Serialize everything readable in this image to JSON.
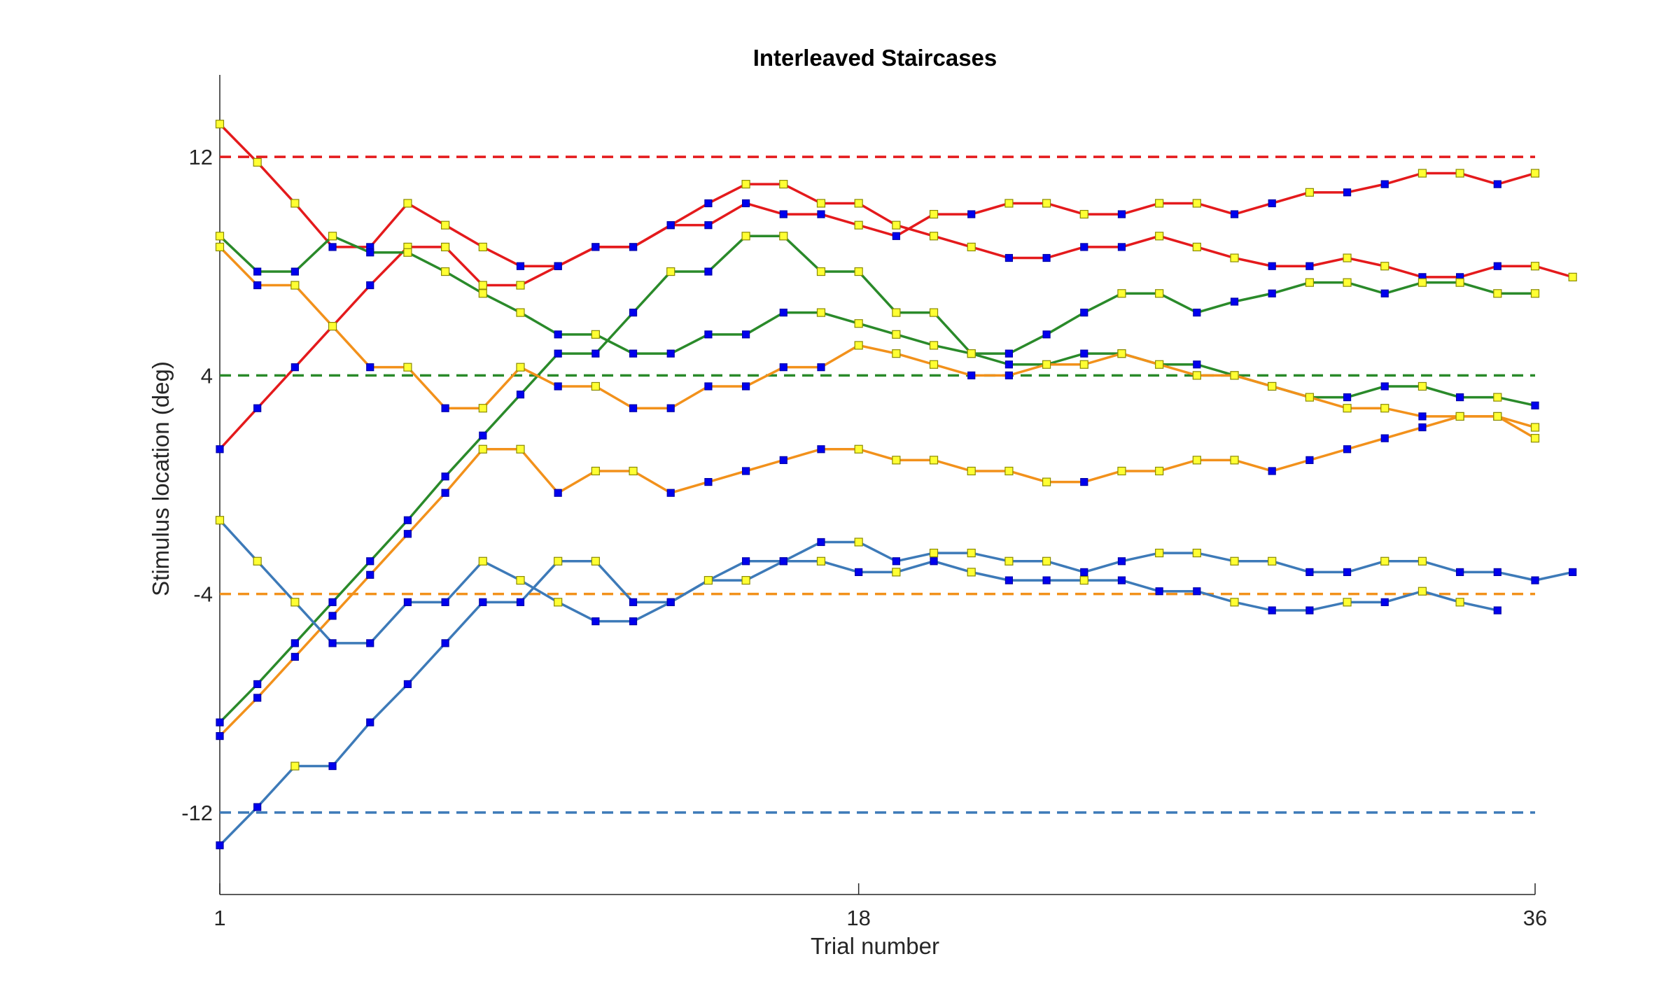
{
  "chart_data": {
    "type": "line",
    "title": "Interleaved Staircases",
    "xlabel": "Trial number",
    "ylabel": "Stimulus location (deg)",
    "xlim": [
      1,
      36
    ],
    "ylim": [
      -15,
      15
    ],
    "xticks": [
      1,
      18,
      36
    ],
    "yticks": [
      -12,
      -4,
      4,
      12
    ],
    "grid": false,
    "reference_lines": [
      {
        "name": "red-target",
        "y": 12,
        "color": "#e41a1c"
      },
      {
        "name": "green-target",
        "y": 4,
        "color": "#2a8a2a"
      },
      {
        "name": "orange-target",
        "y": -4,
        "color": "#f2911b"
      },
      {
        "name": "blue-target",
        "y": -12,
        "color": "#3d7ab8"
      }
    ],
    "series": [
      {
        "name": "red-1",
        "color": "#e41a1c",
        "values": [
          13.2,
          11.8,
          10.3,
          8.7,
          8.7,
          10.3,
          9.5,
          8.7,
          8.0,
          8.0,
          8.7,
          8.7,
          9.5,
          10.3,
          11.0,
          11.0,
          10.3,
          10.3,
          9.5,
          9.1,
          8.7,
          8.3,
          8.3,
          8.7,
          8.7,
          9.1,
          8.7,
          8.3,
          8.0,
          8.0,
          8.3,
          8.0,
          7.6,
          7.6,
          8.0,
          8.0,
          7.6
        ],
        "markers": [
          "y",
          "y",
          "y",
          "b",
          "b",
          "y",
          "y",
          "y",
          "b",
          "b",
          "b",
          "b",
          "b",
          "b",
          "y",
          "y",
          "y",
          "y",
          "y",
          "y",
          "y",
          "b",
          "b",
          "b",
          "b",
          "y",
          "y",
          "y",
          "b",
          "b",
          "y",
          "y",
          "b",
          "b",
          "b",
          "y",
          "y"
        ]
      },
      {
        "name": "red-2",
        "color": "#e41a1c",
        "values": [
          1.3,
          2.8,
          4.3,
          5.8,
          7.3,
          8.7,
          8.7,
          7.3,
          7.3,
          8.0,
          8.7,
          8.7,
          9.5,
          9.5,
          10.3,
          9.9,
          9.9,
          9.5,
          9.1,
          9.9,
          9.9,
          10.3,
          10.3,
          9.9,
          9.9,
          10.3,
          10.3,
          9.9,
          10.3,
          10.7,
          10.7,
          11.0,
          11.4,
          11.4,
          11.0,
          11.4
        ],
        "markers": [
          "b",
          "b",
          "b",
          "b",
          "b",
          "y",
          "y",
          "y",
          "y",
          "b",
          "b",
          "b",
          "b",
          "b",
          "b",
          "b",
          "b",
          "y",
          "b",
          "y",
          "b",
          "y",
          "y",
          "y",
          "b",
          "y",
          "y",
          "b",
          "b",
          "y",
          "b",
          "b",
          "y",
          "y",
          "b",
          "y"
        ]
      },
      {
        "name": "green-1",
        "color": "#2a8a2a",
        "values": [
          9.1,
          7.8,
          7.8,
          9.1,
          8.5,
          8.5,
          7.8,
          7.0,
          6.3,
          5.5,
          5.5,
          4.8,
          4.8,
          5.5,
          5.5,
          6.3,
          6.3,
          5.9,
          5.5,
          5.1,
          4.8,
          4.4,
          4.4,
          4.8,
          4.8,
          4.4,
          4.4,
          4.0,
          3.6,
          3.2,
          3.2,
          3.6,
          3.6,
          3.2,
          3.2,
          2.9
        ],
        "markers": [
          "y",
          "b",
          "b",
          "y",
          "b",
          "y",
          "y",
          "y",
          "y",
          "b",
          "y",
          "b",
          "b",
          "b",
          "b",
          "b",
          "y",
          "y",
          "y",
          "y",
          "y",
          "b",
          "b",
          "b",
          "y",
          "b",
          "b",
          "y",
          "y",
          "b",
          "b",
          "b",
          "y",
          "b",
          "y",
          "b"
        ]
      },
      {
        "name": "green-2",
        "color": "#2a8a2a",
        "values": [
          -8.7,
          -7.3,
          -5.8,
          -4.3,
          -2.8,
          -1.3,
          0.3,
          1.8,
          3.3,
          4.8,
          4.8,
          6.3,
          7.8,
          7.8,
          9.1,
          9.1,
          7.8,
          7.8,
          6.3,
          6.3,
          4.8,
          4.8,
          5.5,
          6.3,
          7.0,
          7.0,
          6.3,
          6.7,
          7.0,
          7.4,
          7.4,
          7.0,
          7.4,
          7.4,
          7.0,
          7.0
        ],
        "markers": [
          "b",
          "b",
          "b",
          "b",
          "b",
          "b",
          "b",
          "b",
          "b",
          "b",
          "b",
          "b",
          "y",
          "b",
          "y",
          "y",
          "y",
          "y",
          "y",
          "y",
          "y",
          "b",
          "b",
          "b",
          "y",
          "y",
          "b",
          "b",
          "b",
          "y",
          "y",
          "b",
          "y",
          "y",
          "y",
          "y"
        ]
      },
      {
        "name": "orange-1",
        "color": "#f2911b",
        "values": [
          8.7,
          7.3,
          7.3,
          5.8,
          4.3,
          4.3,
          2.8,
          2.8,
          4.3,
          3.6,
          3.6,
          2.8,
          2.8,
          3.6,
          3.6,
          4.3,
          4.3,
          5.1,
          4.8,
          4.4,
          4.0,
          4.0,
          4.4,
          4.4,
          4.8,
          4.4,
          4.0,
          4.0,
          3.6,
          3.2,
          2.8,
          2.8,
          2.5,
          2.5,
          2.5,
          2.1
        ],
        "markers": [
          "y",
          "b",
          "y",
          "y",
          "b",
          "y",
          "b",
          "y",
          "y",
          "b",
          "y",
          "b",
          "b",
          "b",
          "b",
          "b",
          "b",
          "y",
          "y",
          "y",
          "b",
          "b",
          "y",
          "y",
          "y",
          "y",
          "y",
          "y",
          "y",
          "y",
          "y",
          "y",
          "b",
          "y",
          "y",
          "y"
        ]
      },
      {
        "name": "orange-2",
        "color": "#f2911b",
        "values": [
          -9.2,
          -7.8,
          -6.3,
          -4.8,
          -3.3,
          -1.8,
          -0.3,
          1.3,
          1.3,
          -0.3,
          0.5,
          0.5,
          -0.3,
          0.1,
          0.5,
          0.9,
          1.3,
          1.3,
          0.9,
          0.9,
          0.5,
          0.5,
          0.1,
          0.1,
          0.5,
          0.5,
          0.9,
          0.9,
          0.5,
          0.9,
          1.3,
          1.7,
          2.1,
          2.5,
          2.5,
          1.7
        ],
        "markers": [
          "b",
          "b",
          "b",
          "b",
          "b",
          "b",
          "b",
          "y",
          "y",
          "b",
          "y",
          "y",
          "b",
          "b",
          "b",
          "b",
          "b",
          "y",
          "y",
          "y",
          "y",
          "y",
          "y",
          "b",
          "y",
          "y",
          "y",
          "y",
          "b",
          "b",
          "b",
          "b",
          "b",
          "y",
          "y",
          "y"
        ]
      },
      {
        "name": "blue-1",
        "color": "#3d7ab8",
        "values": [
          -1.3,
          -2.8,
          -4.3,
          -5.8,
          -5.8,
          -4.3,
          -4.3,
          -2.8,
          -3.5,
          -4.3,
          -5.0,
          -5.0,
          -4.3,
          -3.5,
          -2.8,
          -2.8,
          -2.1,
          -2.1,
          -2.8,
          -2.5,
          -2.5,
          -2.8,
          -2.8,
          -3.2,
          -2.8,
          -2.5,
          -2.5,
          -2.8,
          -2.8,
          -3.2,
          -3.2,
          -2.8,
          -2.8,
          -3.2,
          -3.2,
          -3.5,
          -3.2
        ],
        "markers": [
          "y",
          "y",
          "y",
          "b",
          "b",
          "b",
          "b",
          "y",
          "y",
          "y",
          "b",
          "b",
          "b",
          "b",
          "b",
          "b",
          "b",
          "y",
          "b",
          "y",
          "y",
          "y",
          "y",
          "b",
          "b",
          "y",
          "y",
          "y",
          "y",
          "b",
          "b",
          "y",
          "y",
          "b",
          "b",
          "b",
          "b"
        ]
      },
      {
        "name": "blue-2",
        "color": "#3d7ab8",
        "values": [
          -13.2,
          -11.8,
          -10.3,
          -10.3,
          -8.7,
          -7.3,
          -5.8,
          -4.3,
          -4.3,
          -2.8,
          -2.8,
          -4.3,
          -4.3,
          -3.5,
          -3.5,
          -2.8,
          -2.8,
          -3.2,
          -3.2,
          -2.8,
          -3.2,
          -3.5,
          -3.5,
          -3.5,
          -3.5,
          -3.9,
          -3.9,
          -4.3,
          -4.6,
          -4.6,
          -4.3,
          -4.3,
          -3.9,
          -4.3,
          -4.6
        ],
        "markers": [
          "b",
          "b",
          "y",
          "b",
          "b",
          "b",
          "b",
          "b",
          "b",
          "y",
          "y",
          "b",
          "b",
          "y",
          "y",
          "b",
          "y",
          "b",
          "y",
          "b",
          "y",
          "b",
          "b",
          "y",
          "b",
          "b",
          "b",
          "y",
          "b",
          "b",
          "y",
          "b",
          "y",
          "y",
          "b"
        ]
      }
    ]
  }
}
